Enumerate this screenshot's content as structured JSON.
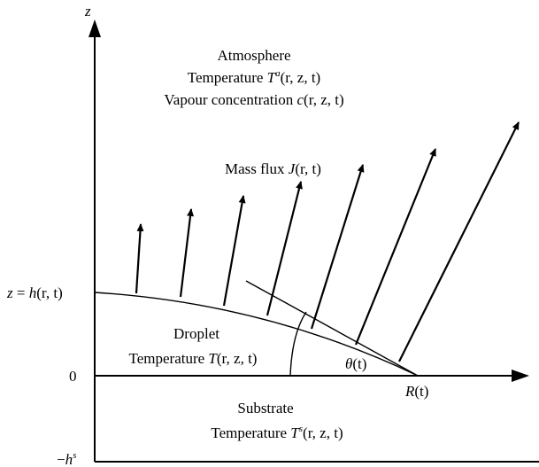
{
  "axis": {
    "z": "z",
    "origin": "0"
  },
  "atmosphere": {
    "title": "Atmosphere",
    "temp_label": "Temperature ",
    "temp_T": "T",
    "temp_sup": "a",
    "temp_args": "(r, z, t)",
    "vapour_label": "Vapour concentration ",
    "vapour_c": "c",
    "vapour_args": "(r, z, t)"
  },
  "flux": {
    "label": "Mass flux ",
    "J": "J",
    "args": "(r, t)"
  },
  "height": {
    "lhs": "z",
    "eq": " = ",
    "h": "h",
    "args": "(r, t)"
  },
  "droplet": {
    "title": "Droplet",
    "temp_label": "Temperature ",
    "temp_T": "T",
    "temp_args": "(r, z, t)"
  },
  "angle": {
    "theta": "θ",
    "args": "(t)"
  },
  "radius": {
    "R": "R",
    "args": "(t)"
  },
  "substrate": {
    "title": "Substrate",
    "temp_label": "Temperature ",
    "temp_T": "T",
    "temp_sup": "s",
    "temp_args": "(r, z, t)"
  },
  "depth": {
    "minus": "−",
    "h": "h",
    "sup": "s"
  }
}
